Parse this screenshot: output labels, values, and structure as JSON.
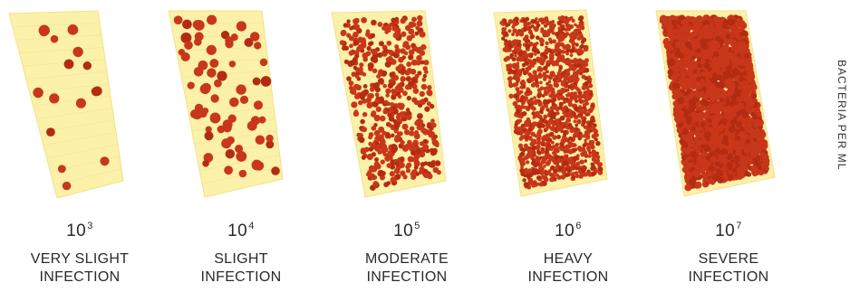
{
  "colors": {
    "strip": "#fbf1a9",
    "strip_edge": "#f3e18a",
    "dot": "#c83719",
    "dot_dark": "#b32b12",
    "text": "#2a2a2a"
  },
  "axis_title": "BACTERIA PER ML",
  "panels": [
    {
      "exponent_base": "10",
      "exponent_power": "3",
      "severity_line1": "VERY SLIGHT",
      "severity_line2": "INFECTION",
      "concentration_per_ml": 1000
    },
    {
      "exponent_base": "10",
      "exponent_power": "4",
      "severity_line1": "SLIGHT",
      "severity_line2": "INFECTION",
      "concentration_per_ml": 10000
    },
    {
      "exponent_base": "10",
      "exponent_power": "5",
      "severity_line1": "MODERATE",
      "severity_line2": "INFECTION",
      "concentration_per_ml": 100000
    },
    {
      "exponent_base": "10",
      "exponent_power": "6",
      "severity_line1": "HEAVY",
      "severity_line2": "INFECTION",
      "concentration_per_ml": 1000000
    },
    {
      "exponent_base": "10",
      "exponent_power": "7",
      "severity_line1": "SEVERE",
      "severity_line2": "INFECTION",
      "concentration_per_ml": 10000000
    }
  ]
}
